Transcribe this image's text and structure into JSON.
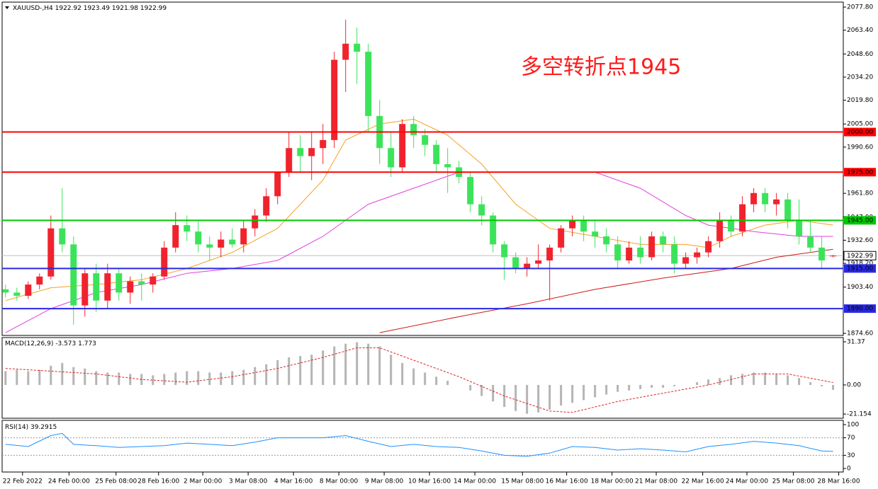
{
  "chart_data": [
    {
      "type": "candlestick",
      "symbol": "XAUUSD-,H4",
      "annotation": "多空转折点1945",
      "up_color": "#f0232d",
      "down_color": "#3ce35a",
      "xlim": [
        -0.3,
        73.9
      ],
      "ylim": [
        1873.3,
        2080.9
      ],
      "xticks": [
        {
          "value": 1.5,
          "label": "22 Feb 2022"
        },
        {
          "value": 5.6,
          "label": "24 Feb 00:00"
        },
        {
          "value": 9.75,
          "label": "25 Feb 08:00"
        },
        {
          "value": 13.5,
          "label": "28 Feb 16:00"
        },
        {
          "value": 17.4,
          "label": "2 Mar 00:00"
        },
        {
          "value": 21.4,
          "label": "3 Mar 08:00"
        },
        {
          "value": 25.4,
          "label": "4 Mar 16:00"
        },
        {
          "value": 29.4,
          "label": "8 Mar 00:00"
        },
        {
          "value": 33.4,
          "label": "9 Mar 08:00"
        },
        {
          "value": 37.4,
          "label": "10 Mar 16:00"
        },
        {
          "value": 41.4,
          "label": "14 Mar 00:00"
        },
        {
          "value": 45.6,
          "label": "15 Mar 08:00"
        },
        {
          "value": 49.5,
          "label": "16 Mar 16:00"
        },
        {
          "value": 53.5,
          "label": "18 Mar 00:00"
        },
        {
          "value": 57.4,
          "label": "21 Mar 08:00"
        },
        {
          "value": 61.5,
          "label": "22 Mar 16:00"
        },
        {
          "value": 65.4,
          "label": "24 Mar 00:00"
        },
        {
          "value": 69.5,
          "label": "25 Mar 08:00"
        },
        {
          "value": 73.5,
          "label": "28 Mar 16:00"
        }
      ],
      "yticks": [
        {
          "value": 2077.8,
          "label": "2077.80"
        },
        {
          "value": 2063.4,
          "label": "2063.40"
        },
        {
          "value": 2048.6,
          "label": "2048.60"
        },
        {
          "value": 2034.2,
          "label": "2034.20"
        },
        {
          "value": 2019.8,
          "label": "2019.80"
        },
        {
          "value": 2005,
          "label": "2005.00"
        },
        {
          "value": 1990.6,
          "label": "1990.60"
        },
        {
          "value": 1961.8,
          "label": "1961.80"
        },
        {
          "value": 1947,
          "label": "1947.00"
        },
        {
          "value": 1932.6,
          "label": "1932.60"
        },
        {
          "value": 1918.2,
          "label": "1918.20"
        },
        {
          "value": 1903.4,
          "label": "1903.40"
        },
        {
          "value": 1874.6,
          "label": "1874.60"
        }
      ],
      "levels": [
        {
          "value": 2000,
          "label": "2000.00",
          "color": "#ff0000"
        },
        {
          "value": 1975,
          "label": "1975.00",
          "color": "#ff0000"
        },
        {
          "value": 1945,
          "label": "1945.00",
          "color": "#00c800"
        },
        {
          "value": 1915,
          "label": "1915.00",
          "color": "#2828e6"
        },
        {
          "value": 1890,
          "label": "1890.00",
          "color": "#2828e6"
        }
      ],
      "candles": [
        [
          1902,
          1905,
          1897,
          1900
        ],
        [
          1900,
          1903,
          1895,
          1898
        ],
        [
          1898,
          1907,
          1896,
          1905
        ],
        [
          1905,
          1912,
          1902,
          1910
        ],
        [
          1910,
          1948,
          1908,
          1940
        ],
        [
          1940,
          1965,
          1925,
          1930
        ],
        [
          1930,
          1935,
          1880,
          1892
        ],
        [
          1892,
          1915,
          1885,
          1912
        ],
        [
          1912,
          1918,
          1888,
          1895
        ],
        [
          1895,
          1918,
          1890,
          1912
        ],
        [
          1912,
          1915,
          1895,
          1900
        ],
        [
          1900,
          1910,
          1893,
          1907
        ],
        [
          1907,
          1912,
          1895,
          1905
        ],
        [
          1905,
          1912,
          1900,
          1910
        ],
        [
          1910,
          1932,
          1908,
          1928
        ],
        [
          1928,
          1950,
          1925,
          1942
        ],
        [
          1942,
          1948,
          1932,
          1938
        ],
        [
          1938,
          1945,
          1925,
          1930
        ],
        [
          1930,
          1935,
          1920,
          1928
        ],
        [
          1928,
          1938,
          1922,
          1933
        ],
        [
          1933,
          1940,
          1928,
          1930
        ],
        [
          1930,
          1945,
          1925,
          1940
        ],
        [
          1940,
          1952,
          1935,
          1948
        ],
        [
          1948,
          1965,
          1944,
          1960
        ],
        [
          1960,
          1975,
          1955,
          1975
        ],
        [
          1975,
          2000,
          1972,
          1990
        ],
        [
          1990,
          1998,
          1975,
          1985
        ],
        [
          1985,
          2000,
          1970,
          1990
        ],
        [
          1990,
          2005,
          1980,
          1995
        ],
        [
          1995,
          2050,
          1990,
          2045
        ],
        [
          2045,
          2070,
          2025,
          2055
        ],
        [
          2055,
          2065,
          2030,
          2050
        ],
        [
          2050,
          2055,
          2000,
          2010
        ],
        [
          2010,
          2020,
          1980,
          1990
        ],
        [
          1990,
          2000,
          1972,
          1978
        ],
        [
          1978,
          2008,
          1975,
          2005
        ],
        [
          2005,
          2010,
          1990,
          1998
        ],
        [
          1998,
          2002,
          1985,
          1992
        ],
        [
          1992,
          1995,
          1975,
          1980
        ],
        [
          1980,
          1990,
          1962,
          1978
        ],
        [
          1978,
          1982,
          1968,
          1972
        ],
        [
          1972,
          1975,
          1950,
          1955
        ],
        [
          1955,
          1960,
          1942,
          1948
        ],
        [
          1948,
          1950,
          1925,
          1930
        ],
        [
          1930,
          1932,
          1908,
          1922
        ],
        [
          1922,
          1925,
          1912,
          1915
        ],
        [
          1915,
          1922,
          1910,
          1918
        ],
        [
          1918,
          1930,
          1915,
          1920
        ],
        [
          1920,
          1930,
          1895,
          1928
        ],
        [
          1928,
          1942,
          1925,
          1940
        ],
        [
          1940,
          1948,
          1935,
          1945
        ],
        [
          1945,
          1948,
          1932,
          1938
        ],
        [
          1938,
          1945,
          1928,
          1935
        ],
        [
          1935,
          1940,
          1925,
          1930
        ],
        [
          1930,
          1935,
          1915,
          1920
        ],
        [
          1920,
          1932,
          1918,
          1928
        ],
        [
          1928,
          1935,
          1918,
          1922
        ],
        [
          1922,
          1938,
          1920,
          1935
        ],
        [
          1935,
          1938,
          1925,
          1930
        ],
        [
          1930,
          1935,
          1912,
          1918
        ],
        [
          1918,
          1925,
          1915,
          1922
        ],
        [
          1922,
          1928,
          1918,
          1925
        ],
        [
          1925,
          1935,
          1922,
          1932
        ],
        [
          1932,
          1950,
          1928,
          1945
        ],
        [
          1945,
          1948,
          1935,
          1938
        ],
        [
          1938,
          1960,
          1935,
          1955
        ],
        [
          1955,
          1965,
          1950,
          1962
        ],
        [
          1962,
          1965,
          1950,
          1955
        ],
        [
          1955,
          1962,
          1948,
          1958
        ],
        [
          1958,
          1962,
          1940,
          1945
        ],
        [
          1945,
          1958,
          1930,
          1935
        ],
        [
          1935,
          1945,
          1925,
          1928
        ],
        [
          1928,
          1935,
          1915,
          1920
        ],
        [
          1922.92,
          1923.49,
          1921.98,
          1922.99
        ]
      ],
      "series": [
        {
          "color": "#f5a020",
          "x": [
            0,
            4,
            8,
            12,
            16,
            20,
            24,
            28,
            30,
            33,
            36,
            39,
            42,
            45,
            48,
            52,
            56,
            60,
            62,
            64,
            67,
            70,
            73
          ],
          "values": [
            1895,
            1903,
            1905,
            1908,
            1915,
            1925,
            1940,
            1970,
            1995,
            2005,
            2008,
            1998,
            1980,
            1955,
            1940,
            1935,
            1930,
            1930,
            1928,
            1935,
            1942,
            1945,
            1942
          ]
        },
        {
          "color": "#e040e0",
          "x": [
            0,
            4,
            8,
            12,
            16,
            20,
            24,
            28,
            32,
            36,
            40,
            44,
            48,
            52,
            56,
            60,
            62,
            66,
            70,
            73
          ],
          "values": [
            1875,
            1890,
            1900,
            1905,
            1912,
            1915,
            1920,
            1935,
            1955,
            1965,
            1975,
            1975,
            1975,
            1975,
            1965,
            1948,
            1942,
            1938,
            1935,
            1935
          ]
        },
        {
          "color": "#d01818",
          "x": [
            33,
            40,
            46,
            52,
            58,
            64,
            68,
            73
          ],
          "values": [
            1875,
            1885,
            1893,
            1902,
            1909,
            1915,
            1922,
            1927
          ]
        }
      ]
    },
    {
      "type": "macd",
      "name": "MACD(12,26,9)",
      "ylim": [
        -24.2,
        34.45
      ],
      "yticks": [
        31.37,
        {
          "value": 0,
          "label": "0.00"
        },
        -21.154
      ],
      "histogram_color": "#b4b4b4",
      "signal_color": "#e02020",
      "values": [
        10,
        11,
        10,
        11,
        14,
        16,
        13,
        12,
        10,
        9,
        9,
        8,
        8,
        7,
        8,
        9,
        10,
        10,
        9,
        9,
        10,
        11,
        13,
        15,
        18,
        20,
        21,
        22,
        25,
        28,
        30,
        31,
        30,
        28,
        22,
        16,
        12,
        9,
        6,
        3,
        0,
        -4,
        -8,
        -12,
        -16,
        -19,
        -21,
        -20,
        -18,
        -15,
        -13,
        -11,
        -9,
        -7,
        -5,
        -4,
        -3,
        -2,
        -2,
        -1,
        0,
        2,
        4,
        5,
        7,
        8,
        9,
        9,
        8,
        7,
        5,
        2,
        -1,
        -3.573
      ],
      "signal": {
        "x": [
          0,
          4,
          8,
          12,
          16,
          20,
          24,
          28,
          31,
          33,
          36,
          40,
          44,
          48,
          50,
          54,
          58,
          62,
          66,
          69,
          73
        ],
        "values": [
          12,
          10,
          8,
          4,
          2,
          6,
          12,
          20,
          27,
          27,
          18,
          6,
          -8,
          -19,
          -20,
          -12,
          -6,
          0,
          8,
          8,
          1.773
        ]
      }
    },
    {
      "type": "rsi",
      "name": "RSI(14)",
      "ylim": [
        -8,
        109.7
      ],
      "yticks": [
        100,
        70,
        30,
        0
      ],
      "levels": [
        70,
        30
      ],
      "color": "#1e90ff",
      "x": [
        0,
        2,
        4,
        5,
        6,
        8,
        10,
        12,
        14,
        16,
        18,
        20,
        22,
        24,
        26,
        28,
        30,
        32,
        34,
        36,
        38,
        40,
        42,
        44,
        46,
        48,
        50,
        52,
        54,
        56,
        58,
        60,
        62,
        64,
        66,
        68,
        70,
        72,
        73
      ],
      "values": [
        55,
        50,
        75,
        80,
        55,
        52,
        48,
        50,
        52,
        58,
        55,
        52,
        60,
        70,
        70,
        70,
        75,
        62,
        50,
        55,
        50,
        48,
        40,
        30,
        28,
        35,
        50,
        48,
        42,
        45,
        42,
        38,
        50,
        55,
        62,
        58,
        52,
        40,
        39.2915
      ]
    }
  ]
}
